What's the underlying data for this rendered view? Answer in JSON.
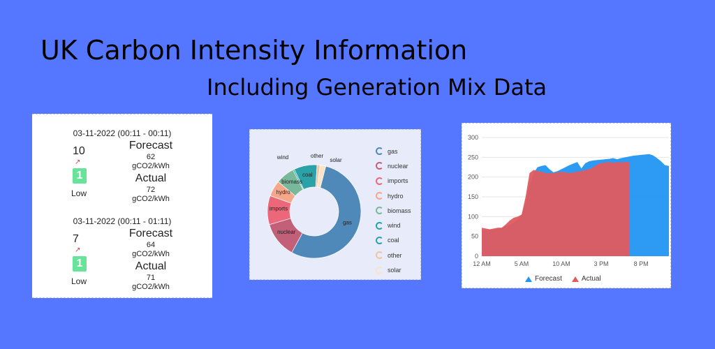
{
  "header": {
    "title": "UK Carbon Intensity Information",
    "subtitle": "Including Generation Mix Data"
  },
  "intensity_blocks": [
    {
      "period": "03-11-2022 (00:11 - 00:11)",
      "index": "10",
      "rating": "1",
      "rating_label": "Low",
      "forecast_label": "Forecast",
      "forecast_value": "62",
      "forecast_unit": "gCO2/kWh",
      "actual_label": "Actual",
      "actual_value": "72",
      "actual_unit": "gCO2/kWh"
    },
    {
      "period": "03-11-2022 (00:11 - 01:11)",
      "index": "7",
      "rating": "1",
      "rating_label": "Low",
      "forecast_label": "Forecast",
      "forecast_value": "64",
      "forecast_unit": "gCO2/kWh",
      "actual_label": "Actual",
      "actual_value": "71",
      "actual_unit": "gCO2/kWh"
    }
  ],
  "chart_data": [
    {
      "type": "pie",
      "categories": [
        "gas",
        "nuclear",
        "imports",
        "hydro",
        "biomass",
        "wind",
        "coal",
        "other",
        "solar"
      ],
      "values": [
        54.0,
        12.5,
        10.0,
        5.5,
        6.5,
        0.5,
        8.0,
        1.0,
        2.0
      ],
      "colors": [
        "#4e89b9",
        "#c25f79",
        "#eb6779",
        "#f7a789",
        "#79b89a",
        "#22a6a0",
        "#2ba2a8",
        "#f2c4a4",
        "#fbe3c8"
      ]
    },
    {
      "type": "area",
      "x_tick_labels": [
        "12 AM",
        "5 AM",
        "10 AM",
        "3 PM",
        "8 PM"
      ],
      "y_tick_labels": [
        "0",
        "50",
        "100",
        "150",
        "200",
        "250",
        "300"
      ],
      "ylim": [
        0,
        300
      ],
      "series": [
        {
          "name": "Forecast",
          "color": "#2296f3",
          "x": [
            0,
            0.5,
            1,
            1.5,
            2,
            2.5,
            3,
            3.5,
            4,
            4.5,
            5,
            5.5,
            6,
            6.5,
            7,
            7.5,
            8,
            8.5,
            9,
            9.5,
            10,
            10.5,
            11,
            11.5,
            12,
            12.5,
            13,
            13.5,
            14,
            14.5,
            15,
            15.5,
            16,
            16.5,
            17,
            17.5,
            18,
            18.5,
            19,
            19.5,
            20,
            20.5,
            21,
            21.5,
            22,
            22.5,
            23,
            23.5
          ],
          "values": [
            65,
            66,
            67,
            68,
            70,
            72,
            76,
            80,
            84,
            92,
            105,
            135,
            180,
            210,
            225,
            228,
            230,
            220,
            212,
            215,
            220,
            225,
            230,
            234,
            238,
            222,
            235,
            240,
            242,
            243,
            244,
            245,
            246,
            248,
            245,
            248,
            250,
            252,
            254,
            255,
            256,
            257,
            258,
            255,
            248,
            240,
            230,
            228
          ]
        },
        {
          "name": "Actual",
          "color": "#e05b5e",
          "x": [
            0,
            0.5,
            1,
            1.5,
            2,
            2.5,
            3,
            3.5,
            4,
            4.5,
            5,
            5.5,
            6,
            6.5,
            7,
            7.5,
            8,
            8.5,
            9,
            9.5,
            10,
            10.5,
            11,
            11.5,
            12,
            12.5,
            13,
            13.5,
            14,
            14.5,
            15,
            15.5,
            16,
            16.5,
            17,
            17.5,
            18,
            18.5
          ],
          "values": [
            72,
            70,
            68,
            70,
            72,
            72,
            80,
            90,
            97,
            100,
            105,
            150,
            210,
            218,
            215,
            214,
            210,
            210,
            210,
            212,
            213,
            212,
            210,
            212,
            214,
            215,
            218,
            220,
            225,
            232,
            235,
            237,
            238,
            236,
            238,
            237,
            238,
            238
          ]
        }
      ]
    }
  ]
}
